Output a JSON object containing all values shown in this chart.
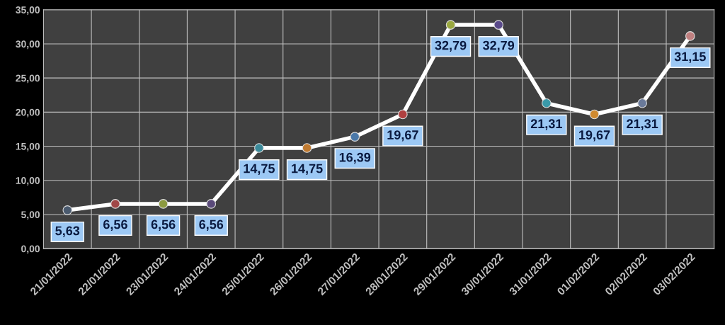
{
  "chart_data": {
    "type": "line",
    "categories": [
      "21/01/2022",
      "22/01/2022",
      "23/01/2022",
      "24/01/2022",
      "25/01/2022",
      "26/01/2022",
      "27/01/2022",
      "28/01/2022",
      "29/01/2022",
      "30/01/2022",
      "31/01/2022",
      "01/02/2022",
      "02/02/2022",
      "03/02/2022"
    ],
    "series": [
      {
        "color": "#ffffff",
        "values": [
          5.63,
          6.56,
          6.56,
          6.56,
          14.75,
          14.75,
          16.39,
          19.67,
          32.79,
          32.79,
          21.31,
          19.67,
          21.31,
          31.15
        ],
        "colors": [
          "#4a5a6e",
          "#a04848",
          "#8c9a40",
          "#5a4a7a",
          "#3a8a9a",
          "#c07a30",
          "#4a78a8",
          "#b04040",
          "#9aa840",
          "#5a4a8a",
          "#3a9aaa",
          "#d08a30",
          "#6a7a9a",
          "#c08080"
        ],
        "value_labels": [
          "5,63",
          "6,56",
          "6,56",
          "6,56",
          "14,75",
          "14,75",
          "16,39",
          "19,67",
          "32,79",
          "32,79",
          "21,31",
          "19,67",
          "21,31",
          "31,15"
        ]
      }
    ],
    "ylim": [
      0,
      35
    ],
    "yticks": [
      {
        "value": 0,
        "label": "0,00"
      },
      {
        "value": 5,
        "label": "5,00"
      },
      {
        "value": 10,
        "label": "10,00"
      },
      {
        "value": 15,
        "label": "15,00"
      },
      {
        "value": 20,
        "label": "20,00"
      },
      {
        "value": 25,
        "label": "25,00"
      },
      {
        "value": 30,
        "label": "30,00"
      },
      {
        "value": 35,
        "label": "35,00"
      }
    ],
    "grid": true,
    "marker": "circle",
    "line_style": "solid",
    "legend": false
  }
}
